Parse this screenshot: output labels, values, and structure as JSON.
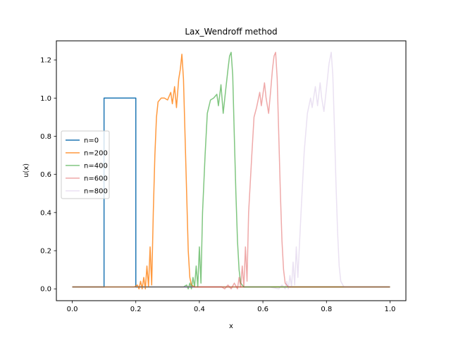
{
  "chart_data": {
    "type": "line",
    "title": "Lax_Wendroff method",
    "xlabel": "x",
    "ylabel": "u(x)",
    "xlim": [
      -0.05,
      1.05
    ],
    "ylim": [
      -0.062,
      1.3
    ],
    "xticks": [
      0.0,
      0.2,
      0.4,
      0.6,
      0.8,
      1.0
    ],
    "xtick_labels": [
      "0.0",
      "0.2",
      "0.4",
      "0.6",
      "0.8",
      "1.0"
    ],
    "yticks": [
      0.0,
      0.2,
      0.4,
      0.6,
      0.8,
      1.0,
      1.2
    ],
    "ytick_labels": [
      "0.0",
      "0.2",
      "0.4",
      "0.6",
      "0.8",
      "1.0",
      "1.2"
    ],
    "baseline": 0.01,
    "legend_position": "center-left",
    "series": [
      {
        "name": "n=0",
        "color": "#1f77b4",
        "opacity": 1.0,
        "points": [
          [
            0.0,
            0.01
          ],
          [
            0.1,
            0.01
          ],
          [
            0.1,
            1.0
          ],
          [
            0.2,
            1.0
          ],
          [
            0.2,
            0.01
          ],
          [
            1.0,
            0.01
          ]
        ]
      },
      {
        "name": "n=200",
        "color": "#ff7f0e",
        "opacity": 0.8,
        "points": [
          [
            0.0,
            0.01
          ],
          [
            0.195,
            0.01
          ],
          [
            0.205,
            0.02
          ],
          [
            0.21,
            0.0
          ],
          [
            0.215,
            0.04
          ],
          [
            0.22,
            0.0
          ],
          [
            0.225,
            0.06
          ],
          [
            0.23,
            0.0
          ],
          [
            0.235,
            0.12
          ],
          [
            0.24,
            0.01
          ],
          [
            0.245,
            0.22
          ],
          [
            0.25,
            0.02
          ],
          [
            0.255,
            0.4
          ],
          [
            0.26,
            0.7
          ],
          [
            0.265,
            0.9
          ],
          [
            0.27,
            0.98
          ],
          [
            0.28,
            1.0
          ],
          [
            0.29,
            1.0
          ],
          [
            0.3,
            0.99
          ],
          [
            0.31,
            1.03
          ],
          [
            0.315,
            0.97
          ],
          [
            0.322,
            1.06
          ],
          [
            0.328,
            0.95
          ],
          [
            0.335,
            1.1
          ],
          [
            0.34,
            1.15
          ],
          [
            0.345,
            1.23
          ],
          [
            0.35,
            1.1
          ],
          [
            0.355,
            0.8
          ],
          [
            0.36,
            0.5
          ],
          [
            0.365,
            0.2
          ],
          [
            0.37,
            0.06
          ],
          [
            0.375,
            0.02
          ],
          [
            0.385,
            0.01
          ],
          [
            1.0,
            0.01
          ]
        ]
      },
      {
        "name": "n=400",
        "color": "#2ca02c",
        "opacity": 0.6,
        "points": [
          [
            0.0,
            0.01
          ],
          [
            0.35,
            0.01
          ],
          [
            0.36,
            0.02
          ],
          [
            0.365,
            0.0
          ],
          [
            0.37,
            0.03
          ],
          [
            0.375,
            0.0
          ],
          [
            0.38,
            0.06
          ],
          [
            0.385,
            0.01
          ],
          [
            0.39,
            0.12
          ],
          [
            0.395,
            0.01
          ],
          [
            0.4,
            0.22
          ],
          [
            0.405,
            0.03
          ],
          [
            0.41,
            0.4
          ],
          [
            0.418,
            0.7
          ],
          [
            0.425,
            0.92
          ],
          [
            0.435,
            0.99
          ],
          [
            0.445,
            1.0
          ],
          [
            0.455,
            1.02
          ],
          [
            0.46,
            0.96
          ],
          [
            0.468,
            1.07
          ],
          [
            0.475,
            0.92
          ],
          [
            0.482,
            1.03
          ],
          [
            0.49,
            1.15
          ],
          [
            0.495,
            1.22
          ],
          [
            0.5,
            1.24
          ],
          [
            0.505,
            1.12
          ],
          [
            0.51,
            0.8
          ],
          [
            0.515,
            0.5
          ],
          [
            0.52,
            0.25
          ],
          [
            0.525,
            0.1
          ],
          [
            0.53,
            0.03
          ],
          [
            0.54,
            0.01
          ],
          [
            1.0,
            0.01
          ]
        ]
      },
      {
        "name": "n=600",
        "color": "#d62728",
        "opacity": 0.4,
        "points": [
          [
            0.0,
            0.01
          ],
          [
            0.47,
            0.01
          ],
          [
            0.48,
            0.0
          ],
          [
            0.49,
            0.02
          ],
          [
            0.5,
            0.0
          ],
          [
            0.51,
            0.03
          ],
          [
            0.52,
            0.0
          ],
          [
            0.525,
            0.06
          ],
          [
            0.53,
            0.01
          ],
          [
            0.535,
            0.12
          ],
          [
            0.54,
            0.01
          ],
          [
            0.545,
            0.22
          ],
          [
            0.55,
            0.04
          ],
          [
            0.555,
            0.4
          ],
          [
            0.565,
            0.7
          ],
          [
            0.572,
            0.9
          ],
          [
            0.58,
            0.95
          ],
          [
            0.59,
            1.03
          ],
          [
            0.595,
            0.96
          ],
          [
            0.605,
            1.08
          ],
          [
            0.61,
            1.0
          ],
          [
            0.618,
            0.92
          ],
          [
            0.625,
            1.05
          ],
          [
            0.63,
            1.15
          ],
          [
            0.635,
            1.22
          ],
          [
            0.64,
            1.24
          ],
          [
            0.645,
            1.1
          ],
          [
            0.65,
            0.8
          ],
          [
            0.655,
            0.5
          ],
          [
            0.66,
            0.25
          ],
          [
            0.665,
            0.1
          ],
          [
            0.67,
            0.03
          ],
          [
            0.68,
            0.01
          ],
          [
            1.0,
            0.01
          ]
        ]
      },
      {
        "name": "n=800",
        "color": "#9467bd",
        "opacity": 0.2,
        "points": [
          [
            0.0,
            0.01
          ],
          [
            0.62,
            0.01
          ],
          [
            0.65,
            0.0
          ],
          [
            0.66,
            0.02
          ],
          [
            0.67,
            0.0
          ],
          [
            0.675,
            0.04
          ],
          [
            0.68,
            0.0
          ],
          [
            0.685,
            0.07
          ],
          [
            0.69,
            0.01
          ],
          [
            0.695,
            0.14
          ],
          [
            0.7,
            0.02
          ],
          [
            0.705,
            0.22
          ],
          [
            0.71,
            0.06
          ],
          [
            0.72,
            0.4
          ],
          [
            0.73,
            0.72
          ],
          [
            0.74,
            0.92
          ],
          [
            0.75,
            1.0
          ],
          [
            0.755,
            0.95
          ],
          [
            0.765,
            1.06
          ],
          [
            0.772,
            0.96
          ],
          [
            0.78,
            1.08
          ],
          [
            0.785,
            1.0
          ],
          [
            0.792,
            0.93
          ],
          [
            0.8,
            1.05
          ],
          [
            0.808,
            1.18
          ],
          [
            0.815,
            1.24
          ],
          [
            0.82,
            1.12
          ],
          [
            0.825,
            0.85
          ],
          [
            0.83,
            0.55
          ],
          [
            0.835,
            0.3
          ],
          [
            0.84,
            0.12
          ],
          [
            0.845,
            0.04
          ],
          [
            0.855,
            0.01
          ],
          [
            1.0,
            0.01
          ]
        ]
      }
    ]
  }
}
